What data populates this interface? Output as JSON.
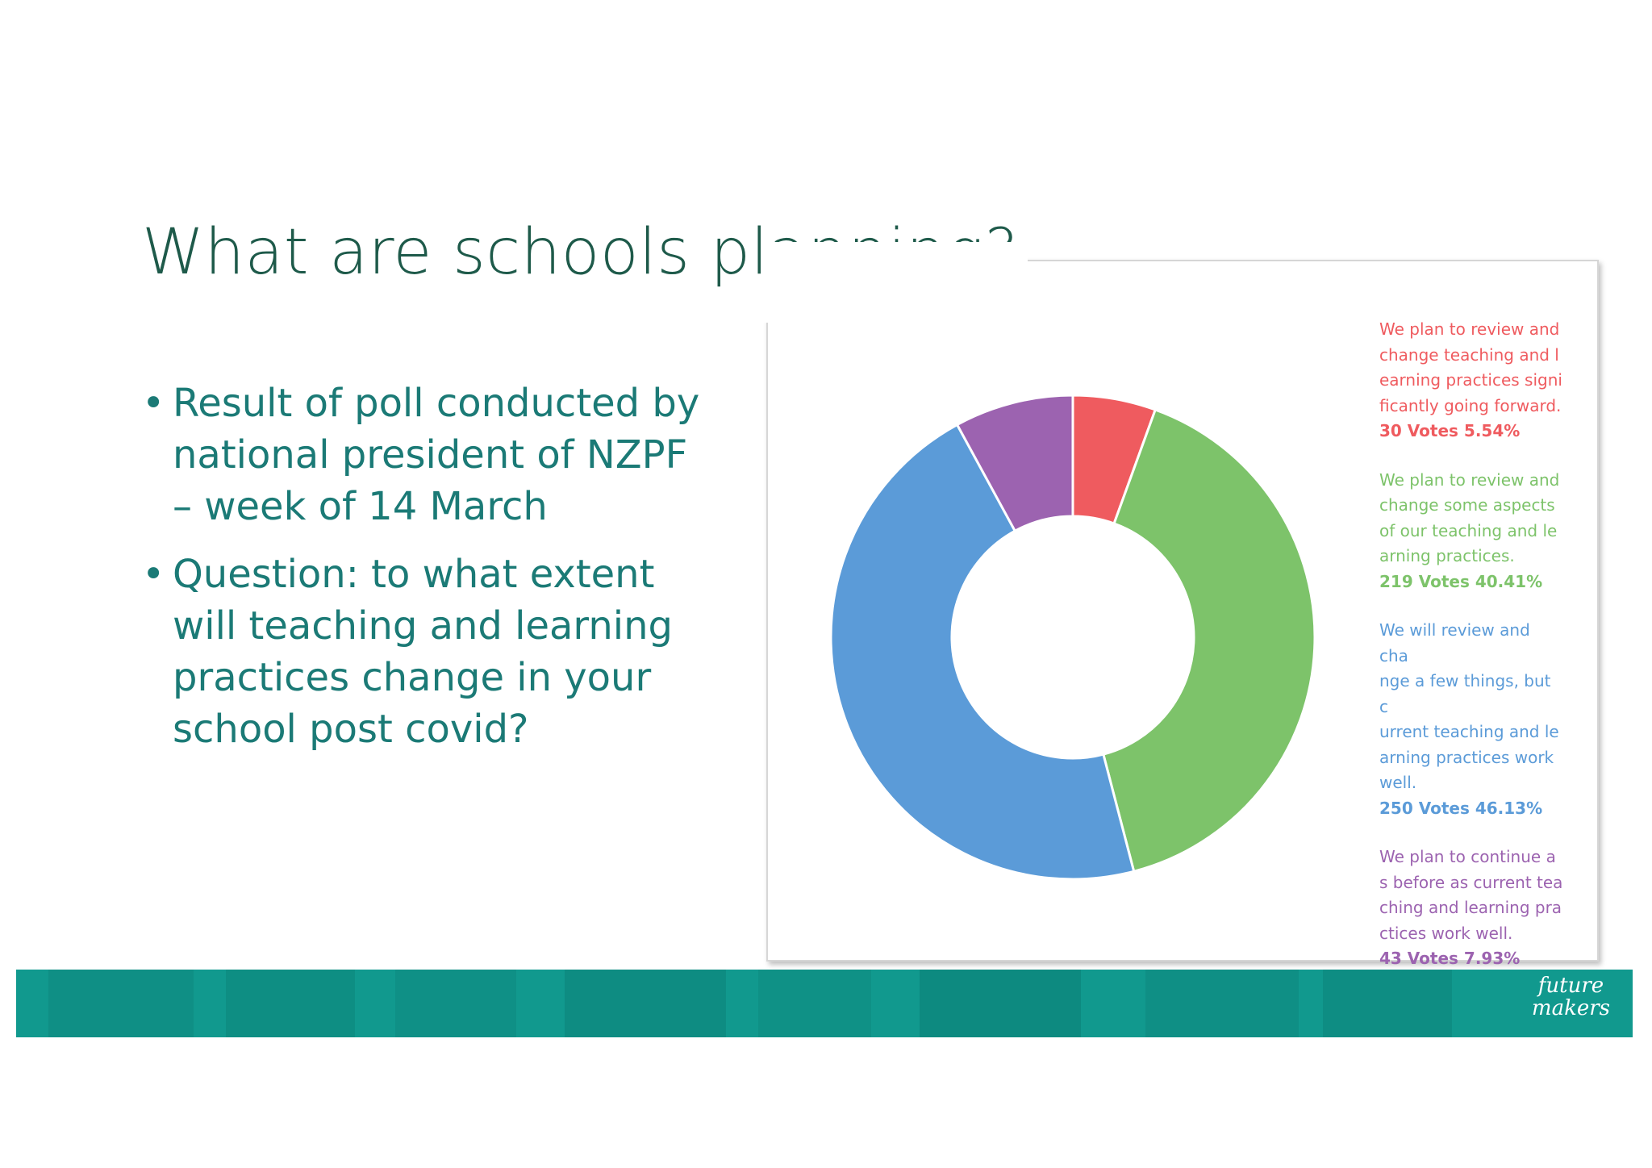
{
  "slide": {
    "title": "What are schools planning?",
    "bullets": [
      "Result of poll conducted by national president of NZPF – week of 14 March",
      "Question: to what extent will teaching and learning practices change in your school post covid?"
    ],
    "bullet_symbol": "•",
    "logo": {
      "line1": "future",
      "line2": "makers"
    }
  },
  "colors": {
    "title": "#1e5a4a",
    "bullets": "#1b7a76",
    "banner": "#11998e"
  },
  "chart_data": {
    "type": "pie",
    "donut": true,
    "legend_position": "right",
    "series": [
      {
        "label": "We plan to review and change teaching and l earning practices signi ficantly going forward.",
        "votes_text": "30 Votes 5.54%",
        "votes": 30,
        "percent": 5.54,
        "color": "#ef5b5f",
        "lines": [
          "We plan to review and",
          "change teaching and l",
          "earning practices signi",
          "ficantly going forward."
        ]
      },
      {
        "label": "We plan to review and change some aspects of our teaching and le arning practices.",
        "votes_text": "219 Votes 40.41%",
        "votes": 219,
        "percent": 40.41,
        "color": "#7dc36a",
        "lines": [
          "We plan to review and",
          "change some aspects",
          "of our teaching and le",
          "arning practices."
        ]
      },
      {
        "label": "We will review and cha nge a few things, but c urrent teaching and le arning practices work well.",
        "votes_text": "250 Votes 46.13%",
        "votes": 250,
        "percent": 46.13,
        "color": "#5b9bd8",
        "lines": [
          "We will review and cha",
          "nge a few things, but c",
          "urrent teaching and le",
          "arning practices work",
          "well."
        ]
      },
      {
        "label": "We plan to continue a s before as current tea ching and learning pra ctices work well.",
        "votes_text": "43 Votes 7.93%",
        "votes": 43,
        "percent": 7.93,
        "color": "#9c63b0",
        "lines": [
          "We plan to continue a",
          "s before as current tea",
          "ching and learning pra",
          "ctices work well."
        ]
      }
    ]
  }
}
